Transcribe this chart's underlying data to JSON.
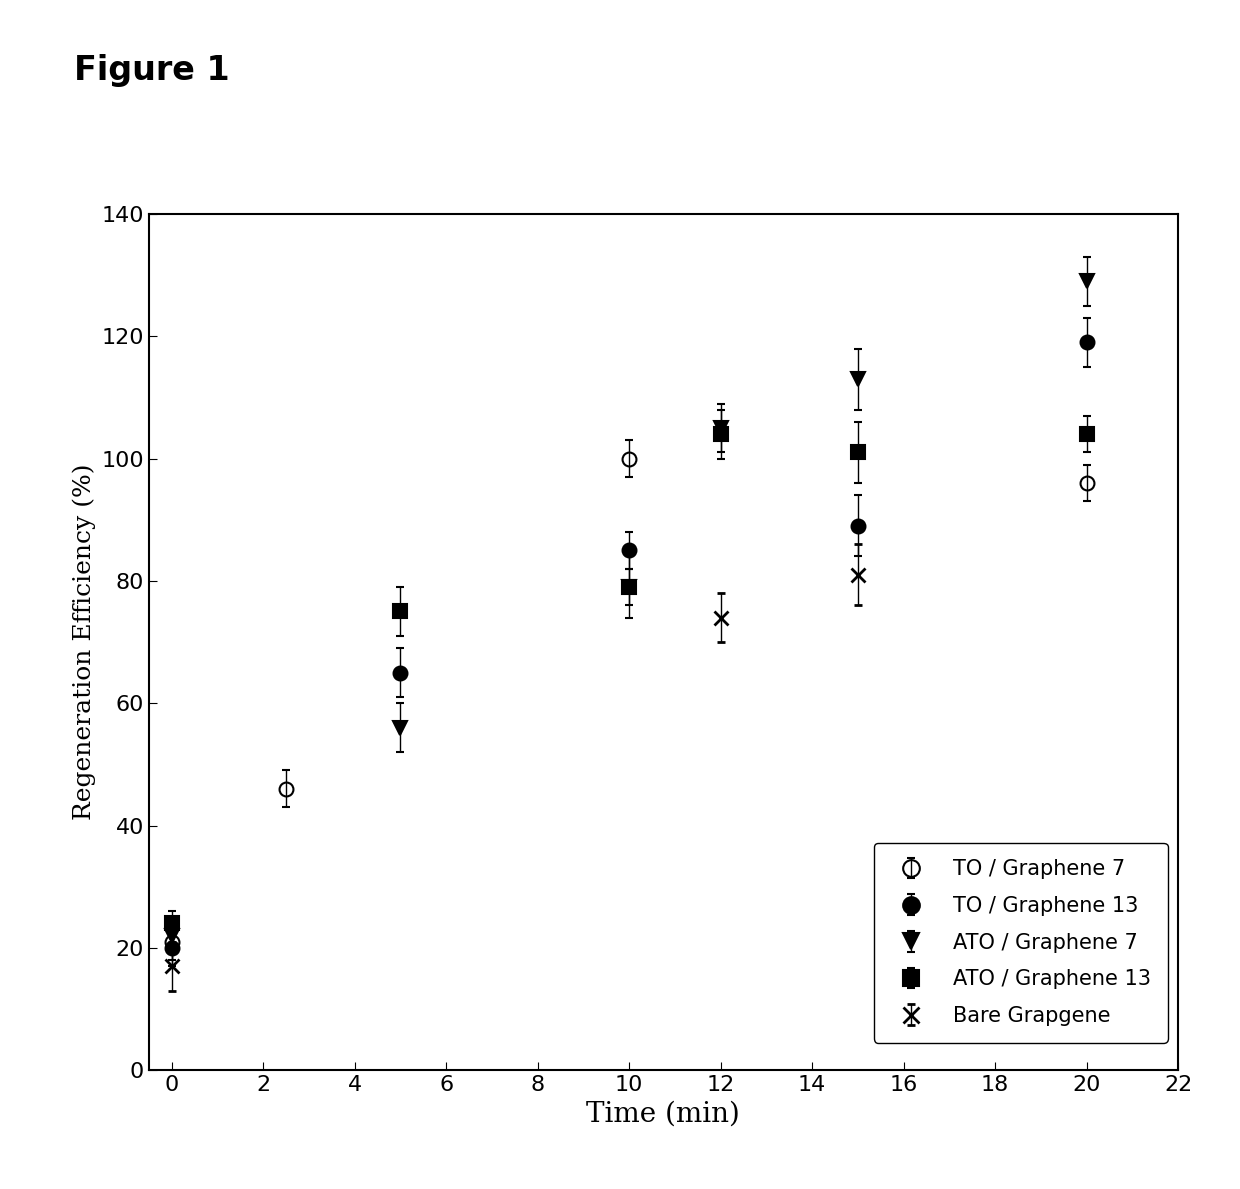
{
  "xlabel": "Time (min)",
  "ylabel": "Regeneration Efficiency (%)",
  "xlim": [
    -0.5,
    22
  ],
  "ylim": [
    0,
    140
  ],
  "xticks": [
    0,
    2,
    4,
    6,
    8,
    10,
    12,
    14,
    16,
    18,
    20,
    22
  ],
  "yticks": [
    0,
    20,
    40,
    60,
    80,
    100,
    120,
    140
  ],
  "series": [
    {
      "label": "TO / Graphene 7",
      "marker": "o",
      "fillstyle": "none",
      "color": "black",
      "x": [
        0,
        2.5,
        10,
        20
      ],
      "y": [
        21,
        46,
        100,
        96
      ],
      "yerr": [
        3,
        3,
        3,
        3
      ]
    },
    {
      "label": "TO / Graphene 13",
      "marker": "o",
      "fillstyle": "full",
      "color": "black",
      "x": [
        0,
        5,
        10,
        15,
        20
      ],
      "y": [
        20,
        65,
        85,
        89,
        119
      ],
      "yerr": [
        3,
        4,
        3,
        5,
        4
      ]
    },
    {
      "label": "ATO / Graphene 7",
      "marker": "v",
      "fillstyle": "full",
      "color": "black",
      "x": [
        0,
        5,
        10,
        12,
        15,
        20
      ],
      "y": [
        22,
        56,
        79,
        105,
        113,
        129
      ],
      "yerr": [
        3,
        4,
        3,
        4,
        5,
        4
      ]
    },
    {
      "label": "ATO / Graphene 13",
      "marker": "s",
      "fillstyle": "full",
      "color": "black",
      "x": [
        0,
        5,
        10,
        12,
        15,
        20
      ],
      "y": [
        24,
        75,
        79,
        104,
        101,
        104
      ],
      "yerr": [
        2,
        4,
        5,
        4,
        5,
        3
      ]
    },
    {
      "label": "Bare Grapgene",
      "marker": "x",
      "fillstyle": "none",
      "color": "black",
      "x": [
        0,
        12,
        15
      ],
      "y": [
        17,
        74,
        81
      ],
      "yerr": [
        4,
        4,
        5
      ]
    }
  ],
  "figure_label": "Figure 1",
  "background_color": "#ffffff",
  "markersize": 10,
  "linewidth": 0,
  "capsize": 3,
  "elinewidth": 1
}
